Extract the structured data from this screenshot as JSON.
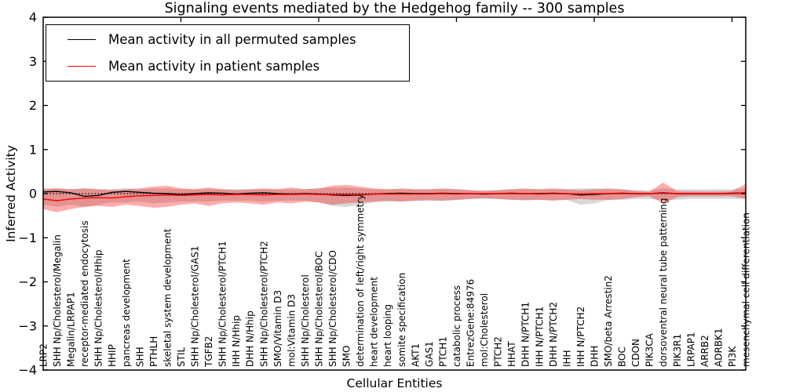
{
  "chart_data": {
    "type": "line",
    "title": "Signaling events mediated by the Hedgehog family -- 300 samples",
    "xlabel": "Cellular Entities",
    "ylabel": "Inferred Activity",
    "ylim": [
      -4,
      4
    ],
    "yticks": [
      4,
      3,
      2,
      1,
      0,
      -1,
      -2,
      -3,
      -4
    ],
    "xtick_interval": 10,
    "grid": false,
    "legend_position": "upper left",
    "zero_line": {
      "show": true,
      "style": "dotted",
      "color": "#000000"
    },
    "categories": [
      "LRP2",
      "SHH Np/Cholesterol/Megalin",
      "Megalin/LRPAP1",
      "receptor-mediated endocytosis",
      "SHH Np/Cholesterol/Hhip",
      "HHIP",
      "pancreas development",
      "SHH",
      "PTHLH",
      "skeletal system development",
      "STIL",
      "SHH Np/Cholesterol/GAS1",
      "TGFB2",
      "SHH Np/Cholesterol/PTCH1",
      "IHH N/Hhip",
      "DHH N/Hhip",
      "SHH Np/Cholesterol/PTCH2",
      "SMO/Vitamin D3",
      "mol:Vitamin D3",
      "SHH Np/Cholesterol",
      "SHH Np/Cholesterol/BOC",
      "SHH Np/Cholesterol/CDO",
      "SMO",
      "determination of left/right symmetry",
      "heart development",
      "heart looping",
      "somite specification",
      "AKT1",
      "GAS1",
      "PTCH1",
      "catabolic process",
      "EntrezGene:84976",
      "mol:Cholesterol",
      "PTCH2",
      "HHAT",
      "DHH N/PTCH1",
      "IHH N/PTCH1",
      "DHH N/PTCH2",
      "IHH",
      "IHH N/PTCH2",
      "DHH",
      "SMO/beta Arrestin2",
      "BOC",
      "CDON",
      "PIK3CA",
      "dorsoventral neural tube patterning",
      "PIK3R1",
      "LRPAP1",
      "ARRB2",
      "ADRBK1",
      "PI3K",
      "mesenchymal cell differentiation"
    ],
    "series": [
      {
        "name": "Mean activity in all permuted samples",
        "color": "#000000",
        "band_color": "rgba(125,125,125,0.30)",
        "values": [
          0.04,
          0.05,
          0.02,
          -0.06,
          -0.04,
          0.03,
          0.05,
          0.03,
          0.01,
          0.0,
          -0.02,
          0.0,
          0.02,
          0.01,
          -0.01,
          0.01,
          0.02,
          0.0,
          -0.01,
          0.0,
          -0.01,
          -0.03,
          -0.04,
          -0.03,
          -0.01,
          0.0,
          0.01,
          0.0,
          0.0,
          0.01,
          0.0,
          0.0,
          -0.01,
          0.0,
          0.01,
          0.0,
          0.0,
          0.01,
          0.0,
          -0.03,
          -0.02,
          0.0,
          0.01,
          0.0,
          0.0,
          0.02,
          0.0,
          0.0,
          0.0,
          0.0,
          0.01,
          0.02
        ],
        "band_upper": [
          0.12,
          0.12,
          0.1,
          0.12,
          0.1,
          0.1,
          0.12,
          0.1,
          0.12,
          0.12,
          0.1,
          0.1,
          0.1,
          0.1,
          0.1,
          0.1,
          0.1,
          0.1,
          0.1,
          0.1,
          0.12,
          0.14,
          0.14,
          0.12,
          0.1,
          0.1,
          0.1,
          0.1,
          0.1,
          0.1,
          0.1,
          0.08,
          0.08,
          0.08,
          0.1,
          0.1,
          0.1,
          0.1,
          0.1,
          0.12,
          0.12,
          0.1,
          0.1,
          0.08,
          0.08,
          0.12,
          0.1,
          0.1,
          0.1,
          0.1,
          0.1,
          0.12
        ],
        "band_lower": [
          -0.25,
          -0.3,
          -0.25,
          -0.3,
          -0.25,
          -0.2,
          -0.2,
          -0.18,
          -0.22,
          -0.2,
          -0.18,
          -0.18,
          -0.18,
          -0.16,
          -0.16,
          -0.16,
          -0.18,
          -0.16,
          -0.16,
          -0.16,
          -0.2,
          -0.28,
          -0.3,
          -0.25,
          -0.2,
          -0.18,
          -0.18,
          -0.16,
          -0.16,
          -0.16,
          -0.15,
          -0.12,
          -0.12,
          -0.12,
          -0.14,
          -0.15,
          -0.14,
          -0.15,
          -0.14,
          -0.25,
          -0.22,
          -0.15,
          -0.14,
          -0.12,
          -0.12,
          -0.15,
          -0.14,
          -0.12,
          -0.12,
          -0.12,
          -0.12,
          -0.12
        ]
      },
      {
        "name": "Mean activity in patient samples",
        "color": "#ff0000",
        "band_color": "rgba(255,0,0,0.32)",
        "values": [
          -0.12,
          -0.16,
          -0.12,
          -0.1,
          -0.09,
          -0.1,
          -0.07,
          -0.05,
          -0.04,
          -0.03,
          -0.04,
          -0.03,
          -0.02,
          -0.03,
          -0.02,
          -0.02,
          -0.03,
          -0.02,
          -0.02,
          -0.01,
          -0.02,
          -0.02,
          -0.02,
          -0.02,
          -0.01,
          -0.01,
          -0.01,
          -0.01,
          -0.01,
          0.0,
          -0.01,
          0.0,
          0.0,
          0.0,
          0.0,
          0.0,
          -0.01,
          0.0,
          0.0,
          -0.01,
          0.0,
          0.0,
          0.0,
          0.0,
          0.0,
          0.01,
          0.0,
          0.0,
          0.0,
          0.0,
          0.0,
          0.02
        ],
        "band_upper": [
          0.1,
          0.12,
          0.1,
          0.12,
          0.1,
          0.08,
          0.1,
          0.12,
          0.16,
          0.18,
          0.12,
          0.1,
          0.14,
          0.1,
          0.08,
          0.1,
          0.12,
          0.1,
          0.14,
          0.1,
          0.12,
          0.18,
          0.2,
          0.16,
          0.12,
          0.1,
          0.12,
          0.1,
          0.1,
          0.12,
          0.1,
          0.08,
          0.06,
          0.08,
          0.1,
          0.12,
          0.1,
          0.12,
          0.1,
          0.08,
          0.1,
          0.12,
          0.1,
          0.06,
          0.04,
          0.25,
          0.06,
          0.05,
          0.05,
          0.05,
          0.06,
          0.22
        ],
        "band_lower": [
          -0.35,
          -0.42,
          -0.35,
          -0.3,
          -0.28,
          -0.3,
          -0.25,
          -0.28,
          -0.32,
          -0.3,
          -0.25,
          -0.22,
          -0.28,
          -0.22,
          -0.2,
          -0.22,
          -0.25,
          -0.2,
          -0.22,
          -0.18,
          -0.2,
          -0.25,
          -0.22,
          -0.2,
          -0.18,
          -0.16,
          -0.18,
          -0.16,
          -0.15,
          -0.16,
          -0.14,
          -0.12,
          -0.1,
          -0.12,
          -0.14,
          -0.15,
          -0.14,
          -0.16,
          -0.14,
          -0.12,
          -0.14,
          -0.14,
          -0.12,
          -0.08,
          -0.06,
          -0.22,
          -0.08,
          -0.06,
          -0.06,
          -0.06,
          -0.06,
          -0.12
        ]
      }
    ]
  }
}
